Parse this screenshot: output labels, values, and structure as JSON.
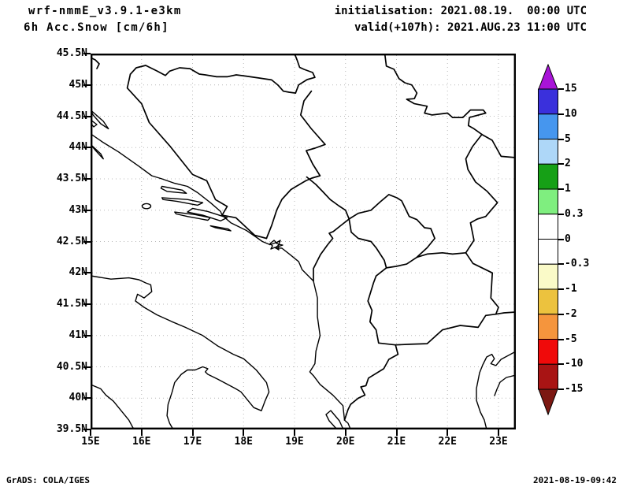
{
  "header": {
    "model": "wrf-nmmE_v3.9.1-e3km",
    "variable": "6h Acc.Snow [cm/6h]",
    "init_line": "initialisation: 2021.08.19.  00:00 UTC",
    "valid_line": "valid(+107h): 2021.AUG.23 11:00 UTC"
  },
  "footer": {
    "left": "GrADS: COLA/IGES",
    "right": "2021-08-19-09:42"
  },
  "map": {
    "lat_labels": [
      "45.5N",
      "45N",
      "44.5N",
      "44N",
      "43.5N",
      "43N",
      "42.5N",
      "42N",
      "41.5N",
      "41N",
      "40.5N",
      "40N",
      "39.5N"
    ],
    "lon_labels": [
      "15E",
      "16E",
      "17E",
      "18E",
      "19E",
      "20E",
      "21E",
      "22E",
      "23E"
    ]
  },
  "colorbar": {
    "tick_labels": [
      "15",
      "10",
      "5",
      "2",
      "1",
      "0.3",
      "0",
      "-0.3",
      "-1",
      "-2",
      "-5",
      "-10",
      "-15"
    ],
    "cell_colors_top_to_bottom": [
      "#3a30dc",
      "#4696ee",
      "#aed7f8",
      "#16a016",
      "#7fee7f",
      "#ffffff",
      "#ffffff",
      "#fafac8",
      "#ecc23e",
      "#f5953d",
      "#f00a0a",
      "#a81414"
    ],
    "over_color": "#a814d8",
    "under_color": "#7c1812",
    "outline_color": "#000000"
  },
  "chart_data": {
    "type": "map",
    "title": "6h Acc.Snow [cm/6h]",
    "model_run": "wrf-nmmE_v3.9.1-e3km",
    "initialisation": "2021.08.19.  00:00 UTC",
    "valid": "valid(+107h): 2021.AUG.23 11:00 UTC",
    "renderer": "GrADS: COLA/IGES",
    "created": "2021-08-19-09:42",
    "lon_axis": {
      "tick_labels": [
        "15E",
        "16E",
        "17E",
        "18E",
        "19E",
        "20E",
        "21E",
        "22E",
        "23E"
      ],
      "range_deg_east": [
        15,
        23.34
      ]
    },
    "lat_axis": {
      "tick_labels": [
        "45.5N",
        "45N",
        "44.5N",
        "44N",
        "43.5N",
        "43N",
        "42.5N",
        "42N",
        "41.5N",
        "41N",
        "40.5N",
        "40N",
        "39.5N"
      ],
      "range_deg_north": [
        39.5,
        45.5
      ]
    },
    "colorbar_levels_cm_per_6h": [
      15,
      10,
      5,
      2,
      1,
      0.3,
      0,
      -0.3,
      -1,
      -2,
      -5,
      -10,
      -15
    ],
    "colorbar_colors_top_to_bottom": [
      "#a814d8",
      "#3a30dc",
      "#4696ee",
      "#aed7f8",
      "#16a016",
      "#7fee7f",
      "#ffffff",
      "#ffffff",
      "#fafac8",
      "#ecc23e",
      "#f5953d",
      "#f00a0a",
      "#a81414",
      "#7c1812"
    ],
    "shaded_values_visible": false,
    "note_on_field": "map interior is blank white - no non-zero accumulated snow shading rendered",
    "graticule": "dotted grid every 1 deg longitude x 0.5 deg latitude",
    "region": "Adriatic / Balkans: Italy, Croatia, Bosnia, Serbia, Montenegro, Kosovo, Albania, North Macedonia, Greece"
  }
}
